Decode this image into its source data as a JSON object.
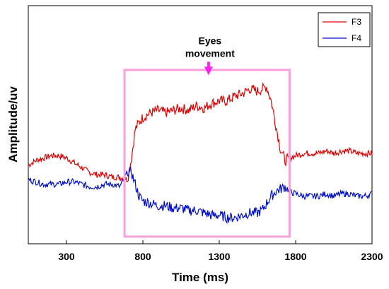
{
  "chart_data": {
    "type": "line",
    "xlabel": "Time (ms)",
    "ylabel": "Amplitude/uv",
    "xlim": [
      50,
      2300
    ],
    "ylim": [
      0,
      100
    ],
    "xticks": [
      300,
      800,
      1300,
      1800,
      2300
    ],
    "grid": false,
    "legend_position": "top-right",
    "series": [
      {
        "name": "F3",
        "color": "#e00000",
        "x": [
          50,
          100,
          150,
          200,
          250,
          300,
          350,
          400,
          450,
          500,
          550,
          600,
          650,
          700,
          725,
          750,
          775,
          800,
          850,
          900,
          950,
          1000,
          1050,
          1100,
          1150,
          1200,
          1250,
          1300,
          1350,
          1400,
          1450,
          1500,
          1550,
          1580,
          1610,
          1640,
          1670,
          1700,
          1730,
          1760,
          1800,
          1850,
          1900,
          1950,
          2000,
          2050,
          2100,
          2150,
          2200,
          2250,
          2300
        ],
        "values": [
          33,
          35,
          36,
          37,
          37,
          36,
          34,
          32,
          30,
          29,
          29,
          28,
          28,
          27,
          36,
          48,
          51,
          53,
          55,
          56,
          55,
          56,
          57,
          56,
          58,
          57,
          59,
          60,
          60,
          62,
          63,
          65,
          64,
          65,
          66,
          60,
          50,
          40,
          35,
          36,
          37,
          38,
          38,
          38,
          39,
          38,
          39,
          39,
          38,
          38,
          38
        ]
      },
      {
        "name": "F4",
        "color": "#0010c8",
        "x": [
          50,
          100,
          150,
          200,
          250,
          300,
          350,
          400,
          450,
          500,
          550,
          600,
          650,
          700,
          725,
          750,
          775,
          800,
          850,
          900,
          950,
          1000,
          1050,
          1100,
          1150,
          1200,
          1250,
          1300,
          1350,
          1400,
          1450,
          1500,
          1550,
          1580,
          1610,
          1640,
          1670,
          1700,
          1730,
          1760,
          1800,
          1850,
          1900,
          1950,
          2000,
          2050,
          2100,
          2150,
          2200,
          2250,
          2300
        ],
        "values": [
          27,
          26,
          25,
          25,
          25,
          26,
          26,
          25,
          24,
          24,
          25,
          25,
          24,
          30,
          30,
          25,
          20,
          18,
          17,
          16,
          16,
          15,
          15,
          14,
          14,
          13,
          12,
          12,
          11,
          11,
          12,
          13,
          13,
          14,
          17,
          20,
          22,
          23,
          24,
          22,
          21,
          20,
          20,
          20,
          21,
          20,
          21,
          21,
          20,
          20,
          21
        ]
      }
    ],
    "annotations": [
      {
        "text_lines": [
          "Eyes",
          "movement"
        ],
        "x": 1230,
        "y": 80,
        "arrow_to_y": 72,
        "arrow_color": "#ff22ee"
      },
      {
        "type": "rectangle",
        "x0": 680,
        "x1": 1760,
        "y0": 3,
        "y1": 73,
        "color": "#f8a0d8"
      }
    ]
  }
}
